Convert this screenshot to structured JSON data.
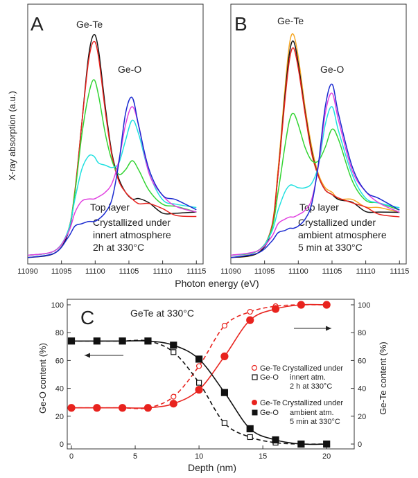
{
  "colors": {
    "black": "#111111",
    "red": "#e8231e",
    "orange": "#f5a623",
    "green": "#33d433",
    "cyan": "#20e0e0",
    "magenta": "#e040e0",
    "blue": "#1a2ad0",
    "teal": "#2a8a8a",
    "axis": "#333333"
  },
  "chart_data": [
    {
      "panel_letter": "A",
      "type": "line",
      "peak_labels": [
        "Ge-Te",
        "Ge-O"
      ],
      "top_layer_label": "Top layer",
      "annotation": [
        "Crystallized under",
        "innert atmosphere",
        "2h at 330°C"
      ],
      "ylabel": "X-ray absorption (a.u.)",
      "xticks": [
        11090,
        11095,
        11100,
        11105,
        11110,
        11115
      ],
      "xlim": [
        11090,
        11116
      ],
      "series": [
        {
          "color": "black",
          "x": [
            11090,
            11094,
            11096,
            11097,
            11098,
            11099,
            11099.8,
            11100.5,
            11101.5,
            11102.5,
            11103.5,
            11104.5,
            11105.5,
            11106.5,
            11108,
            11110,
            11112,
            11115
          ],
          "y": [
            0.01,
            0.03,
            0.12,
            0.3,
            0.6,
            0.9,
            1.0,
            0.93,
            0.68,
            0.47,
            0.36,
            0.3,
            0.27,
            0.26,
            0.24,
            0.22,
            0.21,
            0.2
          ]
        },
        {
          "color": "red",
          "x": [
            11090,
            11094,
            11096,
            11097,
            11098,
            11099,
            11099.8,
            11100.5,
            11101.5,
            11102.5,
            11103.5,
            11104.5,
            11105.5,
            11106.5,
            11108,
            11110,
            11112,
            11115
          ],
          "y": [
            0.02,
            0.04,
            0.13,
            0.31,
            0.6,
            0.88,
            0.97,
            0.9,
            0.66,
            0.46,
            0.35,
            0.3,
            0.27,
            0.26,
            0.24,
            0.22,
            0.21,
            0.2
          ]
        },
        {
          "color": "green",
          "x": [
            11090,
            11094,
            11096,
            11097,
            11098,
            11099,
            11099.8,
            11100.5,
            11101.5,
            11102.5,
            11103.5,
            11104.5,
            11105.5,
            11106.5,
            11108,
            11110,
            11112,
            11115
          ],
          "y": [
            0.02,
            0.04,
            0.13,
            0.3,
            0.55,
            0.73,
            0.8,
            0.73,
            0.56,
            0.44,
            0.38,
            0.4,
            0.44,
            0.4,
            0.3,
            0.25,
            0.23,
            0.21
          ]
        },
        {
          "color": "cyan",
          "x": [
            11090,
            11094,
            11096,
            11097,
            11098,
            11099,
            11099.8,
            11100.5,
            11101.5,
            11102.5,
            11103.5,
            11104.5,
            11105.5,
            11106.5,
            11108,
            11110,
            11112,
            11115
          ],
          "y": [
            0.02,
            0.04,
            0.13,
            0.27,
            0.4,
            0.46,
            0.46,
            0.43,
            0.42,
            0.41,
            0.43,
            0.53,
            0.62,
            0.55,
            0.38,
            0.28,
            0.25,
            0.22
          ]
        },
        {
          "color": "magenta",
          "x": [
            11090,
            11094,
            11096,
            11097,
            11098,
            11099,
            11099.8,
            11100.5,
            11101.5,
            11102.5,
            11103.5,
            11104.5,
            11105.5,
            11106.5,
            11108,
            11110,
            11112,
            11115
          ],
          "y": [
            0.02,
            0.04,
            0.12,
            0.21,
            0.26,
            0.27,
            0.27,
            0.28,
            0.3,
            0.34,
            0.44,
            0.6,
            0.68,
            0.58,
            0.38,
            0.28,
            0.25,
            0.22
          ]
        },
        {
          "color": "blue",
          "x": [
            11090,
            11094,
            11096,
            11097,
            11098,
            11099,
            11099.8,
            11100.5,
            11101.5,
            11102.5,
            11103.5,
            11104.5,
            11105.5,
            11106.5,
            11108,
            11110,
            11112,
            11115
          ],
          "y": [
            0.01,
            0.03,
            0.1,
            0.15,
            0.16,
            0.17,
            0.17,
            0.18,
            0.21,
            0.27,
            0.43,
            0.65,
            0.72,
            0.6,
            0.4,
            0.29,
            0.26,
            0.22
          ]
        }
      ]
    },
    {
      "panel_letter": "B",
      "type": "line",
      "peak_labels": [
        "Ge-Te",
        "Ge-O"
      ],
      "top_layer_label": "Top layer",
      "annotation": [
        "Crystallized under",
        "ambient atmosphere",
        "5 min at 330°C"
      ],
      "xlabel": "Photon energy (eV)",
      "xticks": [
        11090,
        11095,
        11100,
        11105,
        11110,
        11115
      ],
      "xlim": [
        11090,
        11116
      ],
      "series": [
        {
          "color": "orange",
          "x": [
            11090,
            11094,
            11096,
            11097,
            11098,
            11098.7,
            11099.3,
            11100,
            11101,
            11102,
            11103,
            11104,
            11105,
            11106,
            11108,
            11110,
            11112,
            11115
          ],
          "y": [
            0.01,
            0.03,
            0.14,
            0.4,
            0.75,
            0.96,
            1.0,
            0.9,
            0.68,
            0.5,
            0.38,
            0.32,
            0.3,
            0.28,
            0.26,
            0.23,
            0.22,
            0.21
          ]
        },
        {
          "color": "black",
          "x": [
            11090,
            11094,
            11096,
            11097,
            11098,
            11098.7,
            11099.3,
            11100,
            11101,
            11102,
            11103,
            11104,
            11105,
            11106,
            11108,
            11110,
            11112,
            11115
          ],
          "y": [
            0.01,
            0.03,
            0.13,
            0.38,
            0.72,
            0.92,
            0.97,
            0.87,
            0.66,
            0.48,
            0.37,
            0.31,
            0.29,
            0.27,
            0.25,
            0.22,
            0.21,
            0.2
          ]
        },
        {
          "color": "red",
          "x": [
            11090,
            11094,
            11096,
            11097,
            11098,
            11098.7,
            11099.3,
            11100,
            11101,
            11102,
            11103,
            11104,
            11105,
            11106,
            11108,
            11110,
            11112,
            11115
          ],
          "y": [
            0.02,
            0.04,
            0.14,
            0.38,
            0.7,
            0.89,
            0.94,
            0.85,
            0.65,
            0.47,
            0.37,
            0.31,
            0.29,
            0.27,
            0.25,
            0.22,
            0.21,
            0.2
          ]
        },
        {
          "color": "green",
          "x": [
            11090,
            11094,
            11096,
            11097,
            11098,
            11098.7,
            11099.3,
            11100,
            11101,
            11102,
            11103,
            11104,
            11105,
            11106,
            11108,
            11110,
            11112,
            11115
          ],
          "y": [
            0.02,
            0.04,
            0.13,
            0.3,
            0.5,
            0.62,
            0.65,
            0.6,
            0.5,
            0.44,
            0.44,
            0.5,
            0.58,
            0.52,
            0.35,
            0.26,
            0.24,
            0.22
          ]
        },
        {
          "color": "cyan",
          "x": [
            11090,
            11094,
            11096,
            11097,
            11098,
            11098.7,
            11099.3,
            11100,
            11101,
            11102,
            11103,
            11104,
            11105,
            11106,
            11108,
            11110,
            11112,
            11115
          ],
          "y": [
            0.02,
            0.04,
            0.12,
            0.22,
            0.3,
            0.33,
            0.33,
            0.32,
            0.32,
            0.34,
            0.42,
            0.6,
            0.68,
            0.58,
            0.38,
            0.28,
            0.25,
            0.22
          ]
        },
        {
          "color": "magenta",
          "x": [
            11090,
            11094,
            11096,
            11097,
            11098,
            11098.7,
            11099.3,
            11100,
            11101,
            11102,
            11103,
            11104,
            11105,
            11106,
            11108,
            11110,
            11112,
            11115
          ],
          "y": [
            0.02,
            0.04,
            0.1,
            0.16,
            0.18,
            0.19,
            0.19,
            0.2,
            0.22,
            0.27,
            0.42,
            0.65,
            0.74,
            0.62,
            0.4,
            0.29,
            0.26,
            0.22
          ]
        },
        {
          "color": "blue",
          "x": [
            11090,
            11094,
            11096,
            11097,
            11098,
            11098.7,
            11099.3,
            11100,
            11101,
            11102,
            11103,
            11104,
            11105,
            11106,
            11108,
            11110,
            11112,
            11115
          ],
          "y": [
            0.01,
            0.03,
            0.08,
            0.12,
            0.13,
            0.14,
            0.14,
            0.15,
            0.18,
            0.25,
            0.43,
            0.68,
            0.78,
            0.64,
            0.42,
            0.3,
            0.26,
            0.22
          ]
        }
      ]
    },
    {
      "panel_letter": "C",
      "type": "line",
      "title": "GeTe at 330°C",
      "xlabel": "Depth (nm)",
      "ylabel_left": "Ge-O content (%)",
      "ylabel_right": "Ge-Te content (%)",
      "xlim": [
        0,
        22
      ],
      "ylim": [
        0,
        100
      ],
      "xticks": [
        0,
        5,
        10,
        15,
        20
      ],
      "yticks": [
        0,
        20,
        40,
        60,
        80,
        100
      ],
      "legend": {
        "group1": {
          "labels": [
            "Ge-Te",
            "Ge-O"
          ],
          "description": [
            "Crystallized under",
            "innert atm.",
            "2 h at 330°C"
          ]
        },
        "group2": {
          "labels": [
            "Ge-Te",
            "Ge-O"
          ],
          "description": [
            "Crystallized under",
            "ambient atm.",
            "5 min at 330°C"
          ]
        }
      },
      "series": [
        {
          "name": "Ge-Te",
          "group": "innert atm.",
          "style": "open-circle-dashed",
          "color": "red",
          "x": [
            0,
            2,
            4,
            6,
            8,
            10,
            12,
            14,
            16,
            18,
            20
          ],
          "y": [
            26,
            26,
            26,
            26,
            34,
            56,
            85,
            95,
            99,
            100,
            100
          ]
        },
        {
          "name": "Ge-O",
          "group": "innert atm.",
          "style": "open-square-dashed",
          "color": "black",
          "x": [
            0,
            2,
            4,
            6,
            8,
            10,
            12,
            14,
            16,
            18,
            20
          ],
          "y": [
            74,
            74,
            74,
            74,
            66,
            44,
            15,
            5,
            1,
            0,
            0
          ]
        },
        {
          "name": "Ge-Te",
          "group": "ambient atm.",
          "style": "filled-circle-solid",
          "color": "red",
          "x": [
            0,
            2,
            4,
            6,
            8,
            10,
            12,
            14,
            16,
            18,
            20
          ],
          "y": [
            26,
            26,
            26,
            26,
            29,
            39,
            63,
            89,
            97,
            100,
            100
          ]
        },
        {
          "name": "Ge-O",
          "group": "ambient atm.",
          "style": "filled-square-solid",
          "color": "black",
          "x": [
            0,
            2,
            4,
            6,
            8,
            10,
            12,
            14,
            16,
            18,
            20
          ],
          "y": [
            74,
            74,
            74,
            74,
            71,
            61,
            37,
            11,
            3,
            0,
            0
          ]
        }
      ]
    }
  ]
}
